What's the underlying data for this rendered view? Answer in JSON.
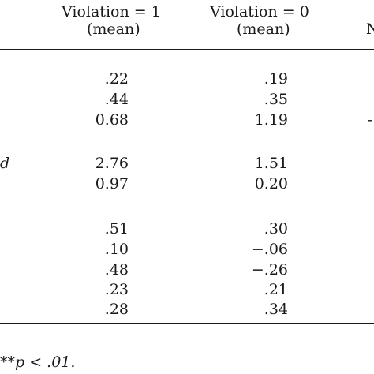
{
  "header": {
    "col1_title": "Violation = 1",
    "col1_sub": "(mean)",
    "col2_title": "Violation = 0",
    "col2_sub": "(mean)",
    "col3_partial": "N"
  },
  "row_label_partial": "d",
  "groups": [
    {
      "rows": [
        {
          "v1": ".22",
          "v0": ".19",
          "v3": ""
        },
        {
          "v1": ".44",
          "v0": ".35",
          "v3": ""
        },
        {
          "v1": "0.68",
          "v0": "1.19",
          "v3": "-"
        }
      ]
    },
    {
      "rows": [
        {
          "v1": "2.76",
          "v0": "1.51",
          "v3": ""
        },
        {
          "v1": "0.97",
          "v0": "0.20",
          "v3": ""
        }
      ]
    },
    {
      "rows": [
        {
          "v1": ".51",
          "v0": ".30",
          "v3": ""
        },
        {
          "v1": ".10",
          "v0": "−.06",
          "v3": ""
        },
        {
          "v1": ".48",
          "v0": "−.26",
          "v3": ""
        },
        {
          "v1": ".23",
          "v0": ".21",
          "v3": ""
        },
        {
          "v1": ".28",
          "v0": ".34",
          "v3": ""
        }
      ]
    }
  ],
  "footnote": "**p < .01."
}
